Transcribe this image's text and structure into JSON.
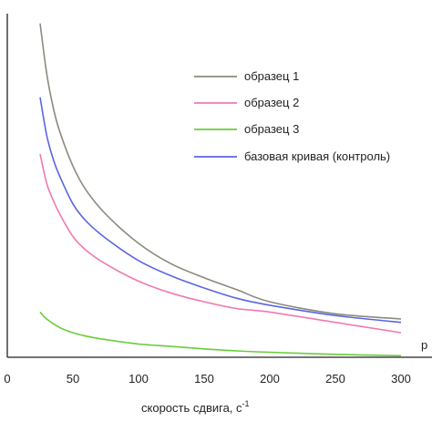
{
  "chart_data": {
    "type": "line",
    "title": "",
    "xlabel": "скорость сдвига, с",
    "xlabel_superscript": "-1",
    "ylabel": "",
    "xlim": [
      0,
      300
    ],
    "ylim": [
      0,
      1
    ],
    "x_ticks": [
      0,
      50,
      100,
      150,
      200,
      250,
      300
    ],
    "x_tick_labels": [
      "0",
      "50",
      "100",
      "150",
      "200",
      "250",
      "300"
    ],
    "annotation": "р",
    "legend": {
      "placement": "top-right"
    },
    "series": [
      {
        "name": "образец 1",
        "color": "#8a8a80",
        "x": [
          25,
          30,
          35,
          40,
          50,
          60,
          75,
          100,
          125,
          150,
          175,
          200,
          250,
          300
        ],
        "y": [
          0.945,
          0.8,
          0.7,
          0.63,
          0.53,
          0.46,
          0.39,
          0.305,
          0.245,
          0.205,
          0.17,
          0.135,
          0.1,
          0.085
        ]
      },
      {
        "name": "образец 2",
        "color": "#f07ab0",
        "x": [
          25,
          30,
          35,
          40,
          50,
          60,
          75,
          100,
          125,
          150,
          175,
          200,
          250,
          300
        ],
        "y": [
          0.565,
          0.48,
          0.43,
          0.39,
          0.325,
          0.285,
          0.245,
          0.195,
          0.16,
          0.135,
          0.115,
          0.105,
          0.075,
          0.045
        ]
      },
      {
        "name": "образец 3",
        "color": "#6acc3a",
        "x": [
          25,
          30,
          40,
          50,
          60,
          75,
          100,
          125,
          150,
          175,
          200,
          250,
          300
        ],
        "y": [
          0.105,
          0.085,
          0.06,
          0.045,
          0.035,
          0.025,
          0.012,
          0.005,
          -0.002,
          -0.008,
          -0.012,
          -0.018,
          -0.022
        ]
      },
      {
        "name": "базовая кривая (контроль)",
        "color": "#5a66e0",
        "x": [
          25,
          30,
          35,
          40,
          50,
          60,
          75,
          100,
          125,
          150,
          175,
          200,
          250,
          300
        ],
        "y": [
          0.73,
          0.62,
          0.55,
          0.5,
          0.42,
          0.37,
          0.32,
          0.255,
          0.21,
          0.175,
          0.145,
          0.125,
          0.095,
          0.075
        ]
      }
    ]
  }
}
